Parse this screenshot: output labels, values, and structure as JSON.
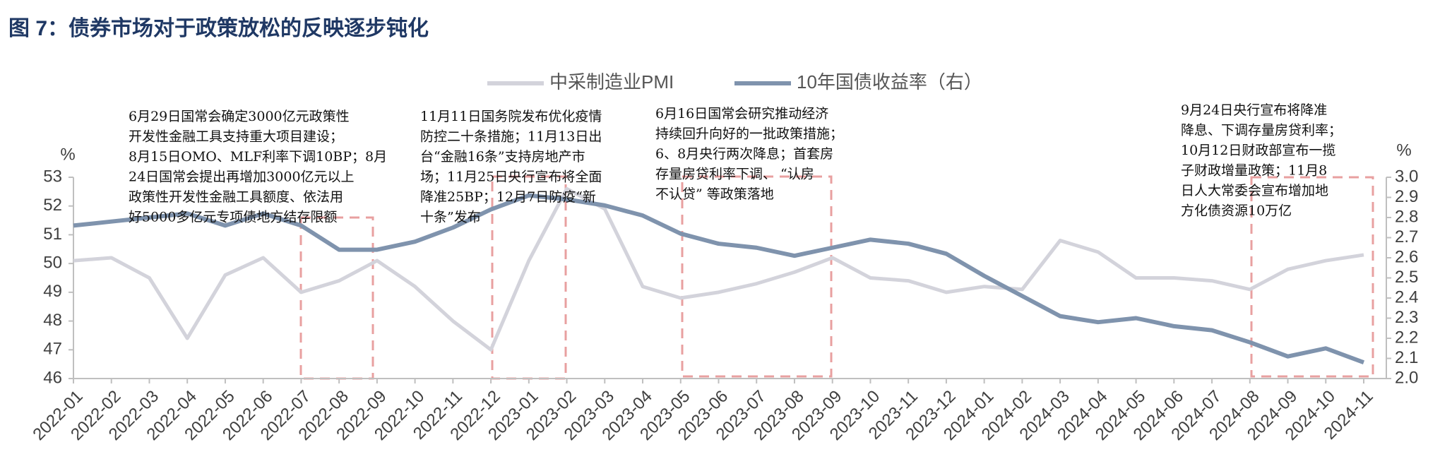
{
  "chart_data": {
    "type": "line",
    "title": "图 7：债券市场对于政策放松的反映逐步钝化",
    "y_unit": "%",
    "y2_unit": "%",
    "categories": [
      "2022-01",
      "2022-02",
      "2022-03",
      "2022-04",
      "2022-05",
      "2022-06",
      "2022-07",
      "2022-08",
      "2022-09",
      "2022-10",
      "2022-11",
      "2022-12",
      "2023-01",
      "2023-02",
      "2023-03",
      "2023-04",
      "2023-05",
      "2023-06",
      "2023-07",
      "2023-08",
      "2023-09",
      "2023-10",
      "2023-11",
      "2023-12",
      "2024-01",
      "2024-02",
      "2024-03",
      "2024-04",
      "2024-05",
      "2024-06",
      "2024-07",
      "2024-08",
      "2024-09",
      "2024-10",
      "2024-11"
    ],
    "series": [
      {
        "name": "中采制造业PMI",
        "color": "#d3d3db",
        "values": [
          50.1,
          50.2,
          49.5,
          47.4,
          49.6,
          50.2,
          49.0,
          49.4,
          50.1,
          49.2,
          48.0,
          47.0,
          50.1,
          52.6,
          51.9,
          49.2,
          48.8,
          49.0,
          49.3,
          49.7,
          50.2,
          49.5,
          49.4,
          49.0,
          49.2,
          49.1,
          50.8,
          50.4,
          49.5,
          49.5,
          49.4,
          49.1,
          49.8,
          50.1,
          50.3
        ]
      },
      {
        "name": "10年国债收益率（右）",
        "color": "#7f93ad",
        "axis": "y2",
        "values": [
          2.76,
          2.78,
          2.8,
          2.82,
          2.76,
          2.82,
          2.76,
          2.64,
          2.64,
          2.68,
          2.75,
          2.84,
          2.91,
          2.89,
          2.86,
          2.81,
          2.72,
          2.67,
          2.65,
          2.61,
          2.65,
          2.69,
          2.67,
          2.62,
          2.51,
          2.41,
          2.31,
          2.28,
          2.3,
          2.26,
          2.24,
          2.18,
          2.11,
          2.15,
          2.08
        ]
      }
    ],
    "ylim": [
      46,
      53
    ],
    "yticks": [
      46,
      47,
      48,
      49,
      50,
      51,
      52,
      53
    ],
    "y2lim": [
      2.0,
      3.0
    ],
    "y2ticks": [
      {
        "value": 2.0,
        "label": "2.0"
      },
      2.1,
      2.2,
      2.3,
      2.4,
      2.5,
      2.6,
      2.7,
      2.8,
      2.9,
      {
        "value": 3.0,
        "label": "3.0"
      }
    ],
    "annotations": [
      {
        "lines": [
          "6月29日国常会确定3000亿元政策性",
          "开发性金融工具支持重大项目建设；",
          "8月15日OMO、MLF利率下调10BP；8月",
          "24日国常会提出再增加3000亿元以上",
          "政策性开发性金融工具额度、依法用",
          "好5000多亿元专项债地方结存限额"
        ]
      },
      {
        "lines": [
          "11月11日国务院发布优化疫情",
          "防控二十条措施；11月13日出",
          "台“金融16条”支持房地产市",
          "场；11月25日央行宣布将全面",
          "降准25BP；12月7日防疫“新",
          "十条”发布"
        ]
      },
      {
        "lines": [
          "6月16日国常会研究推动经济",
          "持续回升向好的一批政策措施；",
          "6、8月央行两次降息；首套房",
          "存量房贷利率下调、 “认房",
          "不认贷” 等政策落地"
        ]
      },
      {
        "lines": [
          "9月24日央行宣布将降准",
          "降息、下调存量房贷利率；",
          "10月12日财政部宣布一揽",
          "子财政增量政策；11月8",
          "日人大常委会宣布增加地",
          "方化债资源10万亿"
        ]
      }
    ]
  }
}
